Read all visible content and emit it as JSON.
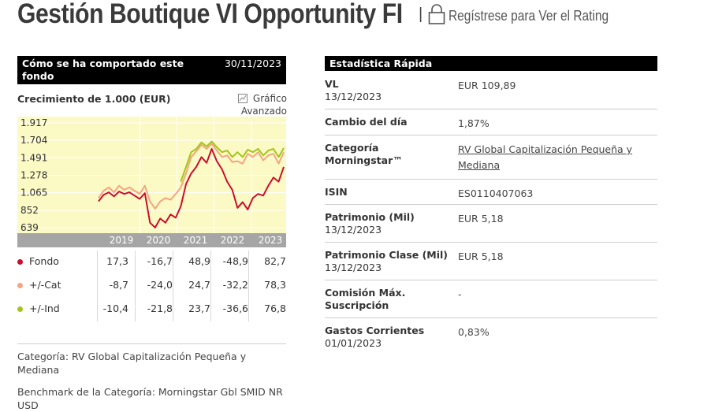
{
  "header": {
    "title": "Gestión Boutique VI Opportunity FI",
    "separator": "|",
    "rating_link": "Regístrese para Ver el Rating",
    "lock_icon": "lock-icon"
  },
  "performance": {
    "header_title": "Cómo se ha comportado este fondo",
    "header_date": "30/11/2023",
    "growth_title": "Crecimiento de 1.000 (EUR)",
    "advanced_chart_label": "Gráfico Avanzado",
    "chart_data": {
      "type": "line",
      "x_labels": [
        "2019",
        "2020",
        "2021",
        "2022",
        "2023"
      ],
      "y_ticks": [
        "1.917",
        "1.704",
        "1.491",
        "1.278",
        "1.065",
        "852",
        "639"
      ],
      "ylim": [
        639,
        1917
      ],
      "series": [
        {
          "name": "Fondo",
          "color": "#c8102e",
          "values": [
            960,
            1040,
            1070,
            1020,
            1080,
            1050,
            1070,
            1030,
            990,
            1060,
            700,
            640,
            750,
            700,
            800,
            760,
            900,
            1170,
            1300,
            1380,
            1500,
            1430,
            1600,
            1450,
            1350,
            1200,
            1100,
            880,
            950,
            860,
            1000,
            1050,
            1030,
            1150,
            1250,
            1200,
            1380
          ]
        },
        {
          "name": "+/-Cat",
          "color": "#f4a582",
          "values": [
            1000,
            1090,
            1130,
            1070,
            1150,
            1100,
            1130,
            1090,
            1050,
            1150,
            960,
            870,
            960,
            1000,
            980,
            1050,
            1130,
            1300,
            1500,
            1570,
            1650,
            1600,
            1660,
            1580,
            1500,
            1520,
            1440,
            1450,
            1420,
            1540,
            1500,
            1560,
            1460,
            1520,
            1540,
            1420,
            1560
          ]
        },
        {
          "name": "+/-Ind",
          "color": "#a2c617",
          "values": [
            null,
            null,
            null,
            null,
            null,
            null,
            null,
            null,
            null,
            null,
            null,
            null,
            null,
            null,
            null,
            null,
            1200,
            1380,
            1560,
            1600,
            1680,
            1630,
            1690,
            1620,
            1560,
            1580,
            1500,
            1560,
            1500,
            1590,
            1560,
            1600,
            1520,
            1580,
            1600,
            1500,
            1610
          ]
        }
      ]
    },
    "rows": [
      {
        "label": "Fondo",
        "color": "#c8102e",
        "values": [
          "17,3",
          "-16,7",
          "48,9",
          "-48,9",
          "82,7"
        ]
      },
      {
        "label": "+/-Cat",
        "color": "#f4a582",
        "values": [
          "-8,7",
          "-24,0",
          "24,7",
          "-32,2",
          "78,3"
        ]
      },
      {
        "label": "+/-Ind",
        "color": "#a2c617",
        "values": [
          "-10,4",
          "-21,8",
          "23,7",
          "-36,6",
          "76,8"
        ]
      }
    ],
    "category_text": "Categoría: RV Global Capitalización Pequeña y Mediana",
    "benchmark_text": "Benchmark de la Categoría: Morningstar Gbl SMID NR USD"
  },
  "stats": {
    "header": "Estadística Rápida",
    "rows": [
      {
        "key": "VL",
        "sub": "13/12/2023",
        "value": "EUR 109,89"
      },
      {
        "key": "Cambio del día",
        "sub": "",
        "value": "1,87%"
      },
      {
        "key": "Categoría Morningstar™",
        "sub": "",
        "value": "RV Global Capitalización Pequeña y Mediana"
      },
      {
        "key": "ISIN",
        "sub": "",
        "value": "ES0110407063"
      },
      {
        "key": "Patrimonio (Mil)",
        "sub": "13/12/2023",
        "value": "EUR 5,18"
      },
      {
        "key": "Patrimonio Clase (Mil)",
        "sub": "13/12/2023",
        "value": "EUR 5,18"
      },
      {
        "key": "Comisión Máx. Suscripción",
        "sub": "",
        "value": "-"
      },
      {
        "key": "Gastos Corrientes",
        "sub": "01/01/2023",
        "value": "0,83%"
      }
    ]
  }
}
